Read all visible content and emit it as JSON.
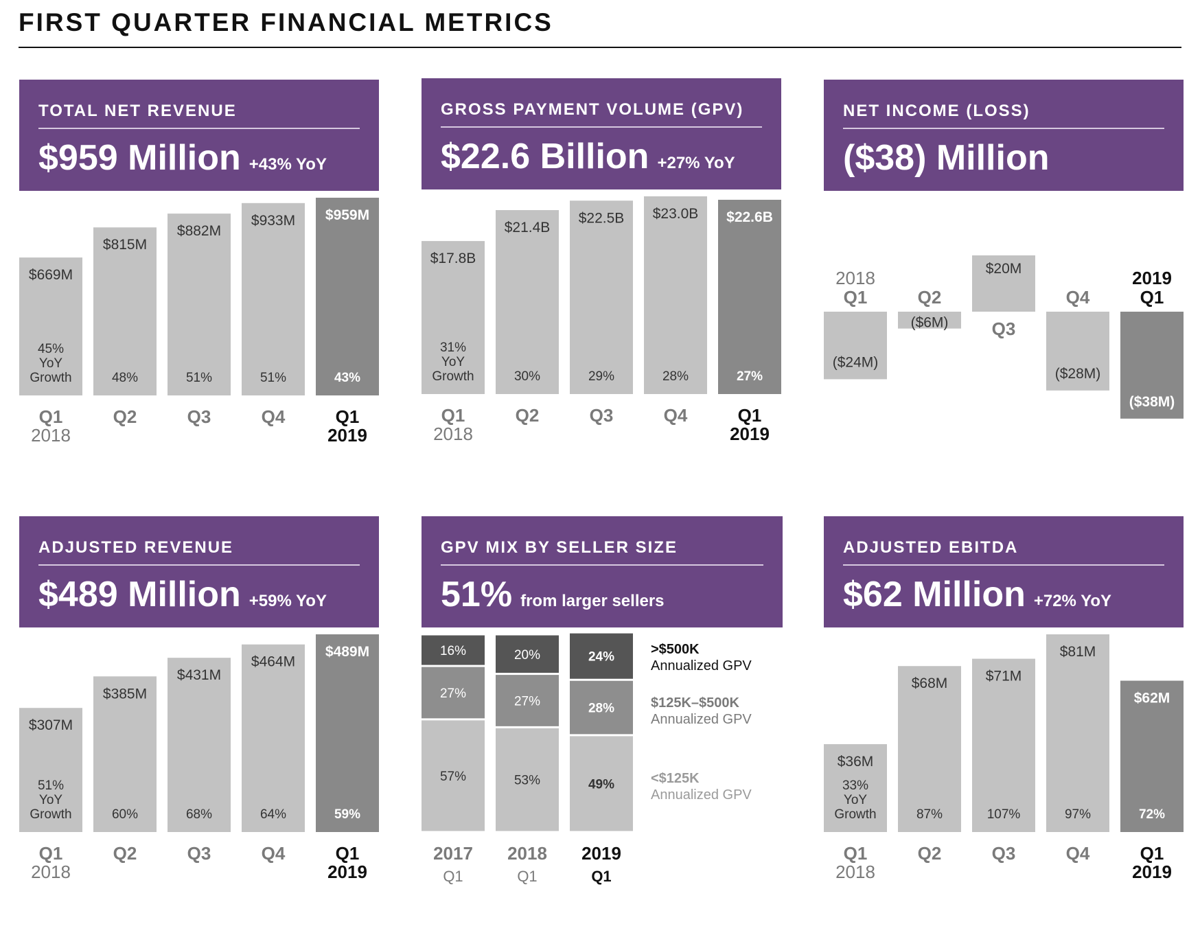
{
  "page_title": "FIRST QUARTER FINANCIAL METRICS",
  "colors": {
    "header_bg": "#6a4683",
    "bar_light": "#c2c2c2",
    "bar_highlight": "#898989",
    "seg_dark": "#555555",
    "seg_mid": "#8e8e8e",
    "seg_light": "#c2c2c2"
  },
  "panels": [
    {
      "id": "total-net-revenue",
      "header": {
        "label": "TOTAL NET REVENUE",
        "big": "$959 Million",
        "small": "+43% YoY"
      },
      "chart_data": {
        "type": "bar",
        "categories": [
          [
            "Q1",
            "2018"
          ],
          [
            "Q2"
          ],
          [
            "Q3"
          ],
          [
            "Q4"
          ],
          [
            "Q1",
            "2019"
          ]
        ],
        "values": [
          669,
          815,
          882,
          933,
          959
        ],
        "value_labels": [
          "$669M",
          "$815M",
          "$882M",
          "$933M",
          "$959M"
        ],
        "growth_labels": [
          [
            "45%",
            "YoY",
            "Growth"
          ],
          [
            "48%"
          ],
          [
            "51%"
          ],
          [
            "51%"
          ],
          [
            "43%"
          ]
        ],
        "highlight_index": 4
      }
    },
    {
      "id": "gross-payment-volume",
      "header": {
        "label": "GROSS PAYMENT VOLUME (GPV)",
        "big": "$22.6 Billion",
        "small": "+27% YoY"
      },
      "chart_data": {
        "type": "bar",
        "categories": [
          [
            "Q1",
            "2018"
          ],
          [
            "Q2"
          ],
          [
            "Q3"
          ],
          [
            "Q4"
          ],
          [
            "Q1",
            "2019"
          ]
        ],
        "values": [
          17.8,
          21.4,
          22.5,
          23.0,
          22.6
        ],
        "value_labels": [
          "$17.8B",
          "$21.4B",
          "$22.5B",
          "$23.0B",
          "$22.6B"
        ],
        "growth_labels": [
          [
            "31%",
            "YoY",
            "Growth"
          ],
          [
            "30%"
          ],
          [
            "29%"
          ],
          [
            "28%"
          ],
          [
            "27%"
          ]
        ],
        "highlight_index": 4
      }
    },
    {
      "id": "net-income-loss",
      "header": {
        "label": "NET INCOME (LOSS)",
        "big": "($38) Million",
        "small": ""
      },
      "chart_data": {
        "type": "bar",
        "categories": [
          [
            "2018",
            "Q1"
          ],
          [
            "Q2"
          ],
          [
            "Q3"
          ],
          [
            "Q4"
          ],
          [
            "2019",
            "Q1"
          ]
        ],
        "values": [
          -24,
          -6,
          20,
          -28,
          -38
        ],
        "value_labels": [
          "($24M)",
          "($6M)",
          "$20M",
          "($28M)",
          "($38M)"
        ],
        "highlight_index": 4
      }
    },
    {
      "id": "adjusted-revenue",
      "header": {
        "label": "ADJUSTED REVENUE",
        "big": "$489 Million",
        "small": "+59% YoY"
      },
      "chart_data": {
        "type": "bar",
        "categories": [
          [
            "Q1",
            "2018"
          ],
          [
            "Q2"
          ],
          [
            "Q3"
          ],
          [
            "Q4"
          ],
          [
            "Q1",
            "2019"
          ]
        ],
        "values": [
          307,
          385,
          431,
          464,
          489
        ],
        "value_labels": [
          "$307M",
          "$385M",
          "$431M",
          "$464M",
          "$489M"
        ],
        "growth_labels": [
          [
            "51%",
            "YoY",
            "Growth"
          ],
          [
            "60%"
          ],
          [
            "68%"
          ],
          [
            "64%"
          ],
          [
            "59%"
          ]
        ],
        "highlight_index": 4
      }
    },
    {
      "id": "gpv-mix-by-seller-size",
      "header": {
        "label": "GPV MIX BY SELLER SIZE",
        "big": "51%",
        "small": "from larger sellers"
      },
      "chart_data": {
        "type": "bar",
        "stacked": true,
        "categories": [
          [
            "2017",
            "Q1"
          ],
          [
            "2018",
            "Q1"
          ],
          [
            "2019",
            "Q1"
          ]
        ],
        "series": [
          {
            "name": "<$125K Annualized GPV",
            "legend_lines": [
              "<$125K",
              "Annualized GPV"
            ],
            "values": [
              57,
              53,
              49
            ]
          },
          {
            "name": "$125K–$500K Annualized GPV",
            "legend_lines": [
              "$125K–$500K",
              "Annualized GPV"
            ],
            "values": [
              27,
              27,
              28
            ]
          },
          {
            "name": ">$500K Annualized GPV",
            "legend_lines": [
              ">$500K",
              "Annualized GPV"
            ],
            "values": [
              16,
              20,
              24
            ]
          }
        ],
        "highlight_index": 2
      }
    },
    {
      "id": "adjusted-ebitda",
      "header": {
        "label": "ADJUSTED EBITDA",
        "big": "$62 Million",
        "small": "+72% YoY"
      },
      "chart_data": {
        "type": "bar",
        "categories": [
          [
            "Q1",
            "2018"
          ],
          [
            "Q2"
          ],
          [
            "Q3"
          ],
          [
            "Q4"
          ],
          [
            "Q1",
            "2019"
          ]
        ],
        "values": [
          36,
          68,
          71,
          81,
          62
        ],
        "value_labels": [
          "$36M",
          "$68M",
          "$71M",
          "$81M",
          "$62M"
        ],
        "growth_labels": [
          [
            "33%",
            "YoY",
            "Growth"
          ],
          [
            "87%"
          ],
          [
            "107%"
          ],
          [
            "97%"
          ],
          [
            "72%"
          ]
        ],
        "highlight_index": 4
      }
    }
  ]
}
